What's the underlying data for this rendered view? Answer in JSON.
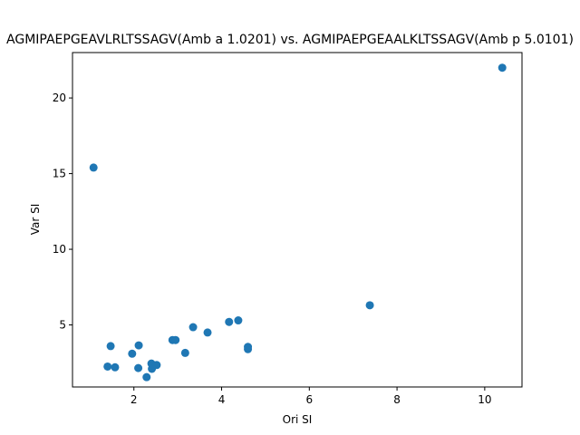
{
  "chart_data": {
    "type": "scatter",
    "title": "AGMIPAEPGEAVLRLTSSAGV(Amb a 1.0201) vs. AGMIPAEPGEAALKLTSSAGV(Amb p 5.0101)",
    "xlabel": "Ori SI",
    "ylabel": "Var SI",
    "xlim": [
      0.6,
      10.85
    ],
    "ylim": [
      0.9,
      23.0
    ],
    "xticks": [
      2,
      4,
      6,
      8,
      10
    ],
    "yticks": [
      5,
      10,
      15,
      20
    ],
    "grid": false,
    "marker_color": "#1f77b4",
    "points": [
      {
        "x": 1.08,
        "y": 15.4
      },
      {
        "x": 10.4,
        "y": 22.0
      },
      {
        "x": 7.38,
        "y": 6.3
      },
      {
        "x": 1.4,
        "y": 2.25
      },
      {
        "x": 1.47,
        "y": 3.6
      },
      {
        "x": 1.57,
        "y": 2.2
      },
      {
        "x": 1.96,
        "y": 3.1
      },
      {
        "x": 2.1,
        "y": 2.15
      },
      {
        "x": 2.11,
        "y": 3.65
      },
      {
        "x": 2.29,
        "y": 1.55
      },
      {
        "x": 2.4,
        "y": 2.45
      },
      {
        "x": 2.41,
        "y": 2.1
      },
      {
        "x": 2.45,
        "y": 2.3
      },
      {
        "x": 2.52,
        "y": 2.35
      },
      {
        "x": 2.88,
        "y": 4.0
      },
      {
        "x": 2.95,
        "y": 4.0
      },
      {
        "x": 3.17,
        "y": 3.15
      },
      {
        "x": 3.35,
        "y": 4.85
      },
      {
        "x": 3.68,
        "y": 4.5
      },
      {
        "x": 4.17,
        "y": 5.2
      },
      {
        "x": 4.38,
        "y": 5.3
      },
      {
        "x": 4.6,
        "y": 3.55
      },
      {
        "x": 4.6,
        "y": 3.4
      }
    ]
  }
}
